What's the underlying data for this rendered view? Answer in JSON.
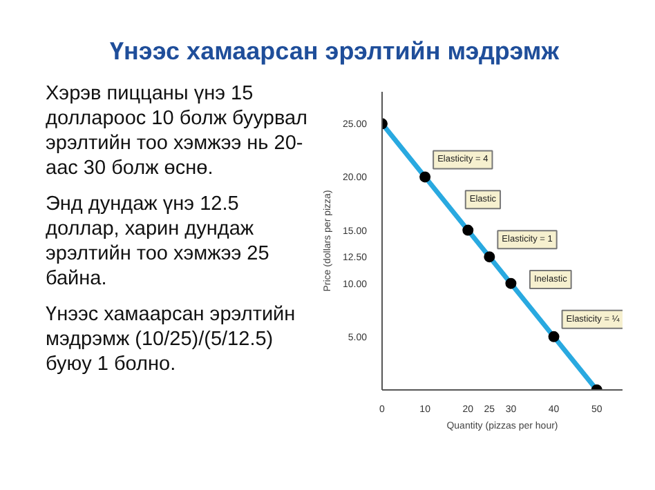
{
  "chart_data": {
    "type": "line",
    "title": "Үнээс хамаарсан эрэлтийн мэдрэмж",
    "xlabel": "Quantity (pizzas per hour)",
    "ylabel": "Price (dollars per pizza)",
    "x": [
      0,
      10,
      20,
      25,
      30,
      40,
      50
    ],
    "series": [
      {
        "color": "#29a9e0",
        "values": [
          25,
          20,
          15,
          12.5,
          10,
          5,
          0
        ]
      }
    ],
    "marker": "circle",
    "line_style": "solid",
    "grid": false,
    "xlim": [
      0,
      56
    ],
    "ylim": [
      0,
      28
    ],
    "xticks": [
      0,
      10,
      20,
      25,
      30,
      40,
      50
    ],
    "yticks": [
      {
        "value": 5,
        "label": "5.00"
      },
      {
        "value": 10,
        "label": "10.00"
      },
      {
        "value": 12.5,
        "label": "12.50"
      },
      {
        "value": 15,
        "label": "15.00"
      },
      {
        "value": 20,
        "label": "20.00"
      },
      {
        "value": 25,
        "label": "25.00"
      }
    ],
    "annotations": [
      "Хэрэв пиццаны үнэ 15 доллароос 10 болж буурвал эрэлтийн тоо хэмжээ нь 20-аас 30 болж өснө.",
      "Энд дундаж үнэ 12.5 доллар, харин дундаж эрэлтийн тоо хэмжээ 25 байна.",
      "Үнээс хамаарсан эрэлтийн мэдрэмж (10/25)/(5/12.5) буюу 1 болно.",
      {
        "text": "Elasticity = 4",
        "x": 10,
        "y": 20
      },
      {
        "text": "Elastic",
        "x": 17.5,
        "y": 16.25
      },
      {
        "text": "Elasticity = 1",
        "x": 25,
        "y": 12.5
      },
      {
        "text": "Inelastic",
        "x": 32.5,
        "y": 8.75
      },
      {
        "text": "Elasticity = ¼",
        "x": 40,
        "y": 5
      }
    ]
  }
}
